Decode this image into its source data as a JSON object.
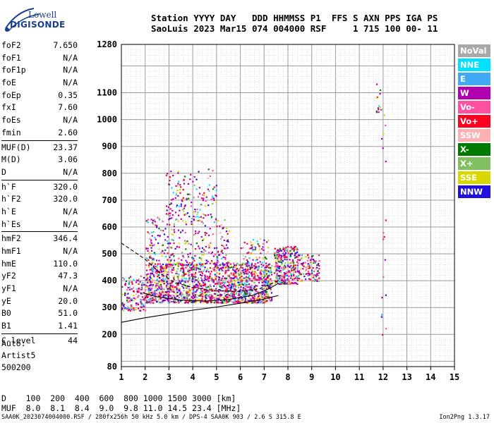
{
  "logo": {
    "line1": "Lowell",
    "line2": "DIGISONDE"
  },
  "header": {
    "line1": "Station YYYY DAY   DDD HHMMSS P1  FFS S AXN PPS IGA PS",
    "line2": "SaoLuis 2023 Mar15 074 004000 RSF     1 715 100 00- 11"
  },
  "params": [
    {
      "label": "foF2",
      "value": "7.650"
    },
    {
      "label": "foF1",
      "value": "N/A"
    },
    {
      "label": "foF1p",
      "value": "N/A"
    },
    {
      "label": "foE",
      "value": "N/A"
    },
    {
      "label": "foEp",
      "value": "0.35"
    },
    {
      "label": "fxI",
      "value": "7.60"
    },
    {
      "label": "foEs",
      "value": "N/A"
    },
    {
      "label": "fmin",
      "value": "2.60"
    },
    {
      "label": "MUF(D)",
      "value": "23.37"
    },
    {
      "label": "M(D)",
      "value": "3.06"
    },
    {
      "label": "D",
      "value": "N/A"
    },
    {
      "label": "h`F",
      "value": "320.0"
    },
    {
      "label": "h`F2",
      "value": "320.0"
    },
    {
      "label": "h`E",
      "value": "N/A"
    },
    {
      "label": "h`Es",
      "value": "N/A"
    },
    {
      "label": "hmF2",
      "value": "346.4"
    },
    {
      "label": "hmF1",
      "value": "N/A"
    },
    {
      "label": "hmE",
      "value": "110.0"
    },
    {
      "label": "yF2",
      "value": "47.3"
    },
    {
      "label": "yF1",
      "value": "N/A"
    },
    {
      "label": "yE",
      "value": "20.0"
    },
    {
      "label": "B0",
      "value": "51.0"
    },
    {
      "label": "B1",
      "value": "1.41"
    },
    {
      "label": "C-level",
      "value": "44"
    }
  ],
  "auto": {
    "line1": "Auto:",
    "line2": "Artist5",
    "line3": "500200"
  },
  "legend": [
    {
      "label": "NoVal",
      "color": "#a8a8a8"
    },
    {
      "label": "NNE",
      "color": "#00e0ff"
    },
    {
      "label": "E",
      "color": "#3fa9f5"
    },
    {
      "label": "W",
      "color": "#b000b0"
    },
    {
      "label": "Vo-",
      "color": "#ff50a0"
    },
    {
      "label": "Vo+",
      "color": "#ff0020"
    },
    {
      "label": "SSW",
      "color": "#ffb0b0"
    },
    {
      "label": "X-",
      "color": "#007a00"
    },
    {
      "label": "X+",
      "color": "#80c060"
    },
    {
      "label": "SSE",
      "color": "#d8d800"
    },
    {
      "label": "NNW",
      "color": "#2010e0"
    }
  ],
  "dmuf": {
    "d_line": "D    100  200  400  600  800 1000 1500 3000 [km]",
    "muf_line": "MUF  8.0  8.1  8.4  9.0  9.8 11.0 14.5 23.4 [MHz]"
  },
  "footer": {
    "text": "SAA0K_2023074004000.RSF / 280fx256h 50 kHz 5.0 km / DPS-4 SAA0K 903 / 2.6 S 315.8 E",
    "version": "Ion2Png 1.3.17"
  },
  "chart_data": {
    "type": "scatter",
    "x_range": [
      1,
      15
    ],
    "y_range": [
      80,
      1280
    ],
    "x_ticks": [
      "1",
      "2",
      "3",
      "4",
      "5",
      "6",
      "7",
      "8",
      "9",
      "10",
      "11",
      "12",
      "13",
      "14",
      "15"
    ],
    "y_ticks": [
      "80",
      "200",
      "300",
      "400",
      "500",
      "600",
      "700",
      "800",
      "900",
      "1000",
      "1100",
      "1280"
    ],
    "grid": true,
    "legend_position": "right",
    "clusters": [
      {
        "fmin": 1.0,
        "fmax": 2.0,
        "hmin": 290,
        "hmax": 420,
        "count": 160
      },
      {
        "fmin": 2.0,
        "fmax": 7.3,
        "hmin": 320,
        "hmax": 470,
        "count": 1600
      },
      {
        "fmin": 2.0,
        "fmax": 5.5,
        "hmin": 460,
        "hmax": 640,
        "count": 300
      },
      {
        "fmin": 2.8,
        "fmax": 5.0,
        "hmin": 640,
        "hmax": 820,
        "count": 140
      },
      {
        "fmin": 6.0,
        "fmax": 7.2,
        "hmin": 400,
        "hmax": 560,
        "count": 120
      },
      {
        "fmin": 7.4,
        "fmax": 8.4,
        "hmin": 390,
        "hmax": 530,
        "count": 320
      },
      {
        "fmin": 8.4,
        "fmax": 9.3,
        "hmin": 400,
        "hmax": 500,
        "count": 120
      },
      {
        "fmin": 11.7,
        "fmax": 11.9,
        "hmin": 1030,
        "hmax": 1140,
        "count": 14
      },
      {
        "fmin": 11.9,
        "fmax": 12.1,
        "hmin": 200,
        "hmax": 1100,
        "count": 20
      }
    ],
    "traces": [
      {
        "style": "solid",
        "points": [
          [
            1,
            245
          ],
          [
            2,
            262
          ],
          [
            3,
            276
          ],
          [
            4,
            290
          ],
          [
            5,
            302
          ],
          [
            6,
            316
          ],
          [
            7,
            332
          ],
          [
            7.6,
            345
          ]
        ]
      },
      {
        "style": "solid",
        "points": [
          [
            1.9,
            355
          ],
          [
            2.5,
            340
          ],
          [
            3.5,
            328
          ],
          [
            4.5,
            324
          ],
          [
            5.5,
            330
          ],
          [
            6.5,
            345
          ],
          [
            7.2,
            370
          ],
          [
            7.6,
            390
          ]
        ]
      },
      {
        "style": "dashed",
        "points": [
          [
            1,
            540
          ],
          [
            2,
            480
          ],
          [
            2.6,
            430
          ],
          [
            3.2,
            395
          ],
          [
            4,
            375
          ],
          [
            5,
            362
          ],
          [
            6,
            360
          ],
          [
            6.8,
            370
          ],
          [
            7.6,
            400
          ]
        ]
      }
    ]
  }
}
